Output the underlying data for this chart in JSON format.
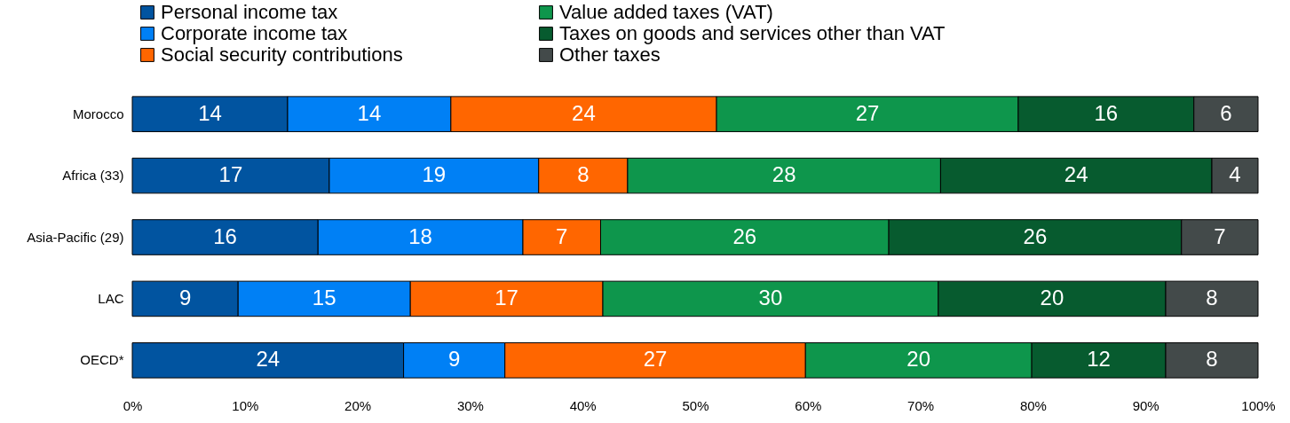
{
  "chart_data": {
    "type": "bar",
    "orientation": "horizontal",
    "stacked": true,
    "categories": [
      "Morocco",
      "Africa (33)",
      "Asia-Pacific (29)",
      "LAC",
      "OECD*"
    ],
    "series": [
      {
        "name": "Personal income tax",
        "color": "#0154a0",
        "values": [
          13.8,
          17.5,
          16.5,
          9.4,
          24.1
        ],
        "value_labels": [
          "14",
          "17",
          "16",
          "9",
          "24"
        ]
      },
      {
        "name": "Corporate income tax",
        "color": "#0080f5",
        "values": [
          14.5,
          18.6,
          18.2,
          15.3,
          9.0
        ],
        "value_labels": [
          "14",
          "19",
          "18",
          "15",
          "9"
        ]
      },
      {
        "name": "Social security contributions",
        "color": "#ff6600",
        "values": [
          23.6,
          7.9,
          6.9,
          17.1,
          26.7
        ],
        "value_labels": [
          "24",
          "8",
          "7",
          "17",
          "27"
        ]
      },
      {
        "name": "Value added taxes (VAT)",
        "color": "#0e964c",
        "values": [
          26.8,
          27.8,
          25.6,
          29.8,
          20.1
        ],
        "value_labels": [
          "27",
          "28",
          "26",
          "30",
          "20"
        ]
      },
      {
        "name": "Taxes on goods and services other than VAT",
        "color": "#075b2f",
        "values": [
          15.6,
          24.1,
          26.0,
          20.2,
          11.9
        ],
        "value_labels": [
          "16",
          "24",
          "26",
          "20",
          "12"
        ]
      },
      {
        "name": "Other taxes",
        "color": "#434a4a",
        "values": [
          5.7,
          4.1,
          6.8,
          8.2,
          8.2
        ],
        "value_labels": [
          "6",
          "4",
          "7",
          "8",
          "8"
        ]
      }
    ],
    "xlim": [
      0,
      100
    ],
    "xticks": [
      {
        "value": 0,
        "label": "0%"
      },
      {
        "value": 10,
        "label": "10%"
      },
      {
        "value": 20,
        "label": "20%"
      },
      {
        "value": 30,
        "label": "30%"
      },
      {
        "value": 40,
        "label": "40%"
      },
      {
        "value": 50,
        "label": "50%"
      },
      {
        "value": 60,
        "label": "60%"
      },
      {
        "value": 70,
        "label": "70%"
      },
      {
        "value": 80,
        "label": "80%"
      },
      {
        "value": 90,
        "label": "90%"
      },
      {
        "value": 100,
        "label": "100%"
      }
    ],
    "legend": "top",
    "grid": false
  }
}
